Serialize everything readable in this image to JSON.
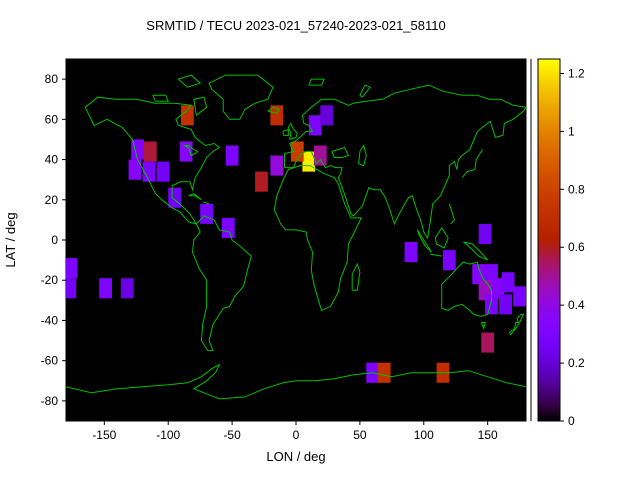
{
  "title": "SRMTID / TECU 2023-021_57240-2023-021_58110",
  "chart_data": {
    "type": "heatmap",
    "title": "SRMTID / TECU 2023-021_57240-2023-021_58110",
    "xlabel": "LON / deg",
    "ylabel": "LAT / deg",
    "xlim": [
      -180,
      180
    ],
    "ylim": [
      -90,
      90
    ],
    "xticks": [
      -150,
      -100,
      -50,
      0,
      50,
      100,
      150
    ],
    "yticks": [
      -80,
      -60,
      -40,
      -20,
      0,
      20,
      40,
      60,
      80
    ],
    "grid": false,
    "plot_background": "#000000",
    "coastline_color": "#00c000",
    "text_color": "#000000",
    "cell_size_deg": 10,
    "colorbar": {
      "min": 0,
      "max": 1.25,
      "ticks": [
        0,
        0.2,
        0.4,
        0.6,
        0.8,
        1,
        1.2
      ],
      "palette": "gnuplot-default black-violet-red-orange-yellow"
    },
    "cells": [
      {
        "lon": -85,
        "lat": 62,
        "value": 0.72
      },
      {
        "lon": -15,
        "lat": 62,
        "value": 0.7
      },
      {
        "lon": 15,
        "lat": 57,
        "value": 0.3
      },
      {
        "lon": 24,
        "lat": 62,
        "value": 0.2
      },
      {
        "lon": 10,
        "lat": 39,
        "value": 1.22
      },
      {
        "lon": 1,
        "lat": 44,
        "value": 0.78
      },
      {
        "lon": 19,
        "lat": 42,
        "value": 0.5
      },
      {
        "lon": -15,
        "lat": 37,
        "value": 0.42
      },
      {
        "lon": -27,
        "lat": 29,
        "value": 0.6
      },
      {
        "lon": -50,
        "lat": 42,
        "value": 0.3
      },
      {
        "lon": -124,
        "lat": 45,
        "value": 0.32
      },
      {
        "lon": -114,
        "lat": 44,
        "value": 0.58
      },
      {
        "lon": -126,
        "lat": 35,
        "value": 0.35
      },
      {
        "lon": -115,
        "lat": 34,
        "value": 0.3
      },
      {
        "lon": -104,
        "lat": 34,
        "value": 0.26
      },
      {
        "lon": -86,
        "lat": 44,
        "value": 0.35
      },
      {
        "lon": -95,
        "lat": 21,
        "value": 0.25
      },
      {
        "lon": -70,
        "lat": 13,
        "value": 0.28
      },
      {
        "lon": -53,
        "lat": 6,
        "value": 0.3
      },
      {
        "lon": -176,
        "lat": -14,
        "value": 0.3
      },
      {
        "lon": -177,
        "lat": -24,
        "value": 0.26
      },
      {
        "lon": -149,
        "lat": -24,
        "value": 0.3
      },
      {
        "lon": -132,
        "lat": -24,
        "value": 0.22
      },
      {
        "lon": 90,
        "lat": -6,
        "value": 0.3
      },
      {
        "lon": 120,
        "lat": -10,
        "value": 0.28
      },
      {
        "lon": 148,
        "lat": 3,
        "value": 0.25
      },
      {
        "lon": 143,
        "lat": -17,
        "value": 0.34
      },
      {
        "lon": 153,
        "lat": -17,
        "value": 0.3
      },
      {
        "lon": 148,
        "lat": -25,
        "value": 0.45
      },
      {
        "lon": 158,
        "lat": -24,
        "value": 0.34
      },
      {
        "lon": 166,
        "lat": -21,
        "value": 0.28
      },
      {
        "lon": 153,
        "lat": -32,
        "value": 0.3
      },
      {
        "lon": 164,
        "lat": -32,
        "value": 0.26
      },
      {
        "lon": 175,
        "lat": -28,
        "value": 0.28
      },
      {
        "lon": 150,
        "lat": -51,
        "value": 0.55
      },
      {
        "lon": 60,
        "lat": -66,
        "value": 0.3
      },
      {
        "lon": 69,
        "lat": -66,
        "value": 0.72
      },
      {
        "lon": 115,
        "lat": -66,
        "value": 0.7
      }
    ]
  }
}
